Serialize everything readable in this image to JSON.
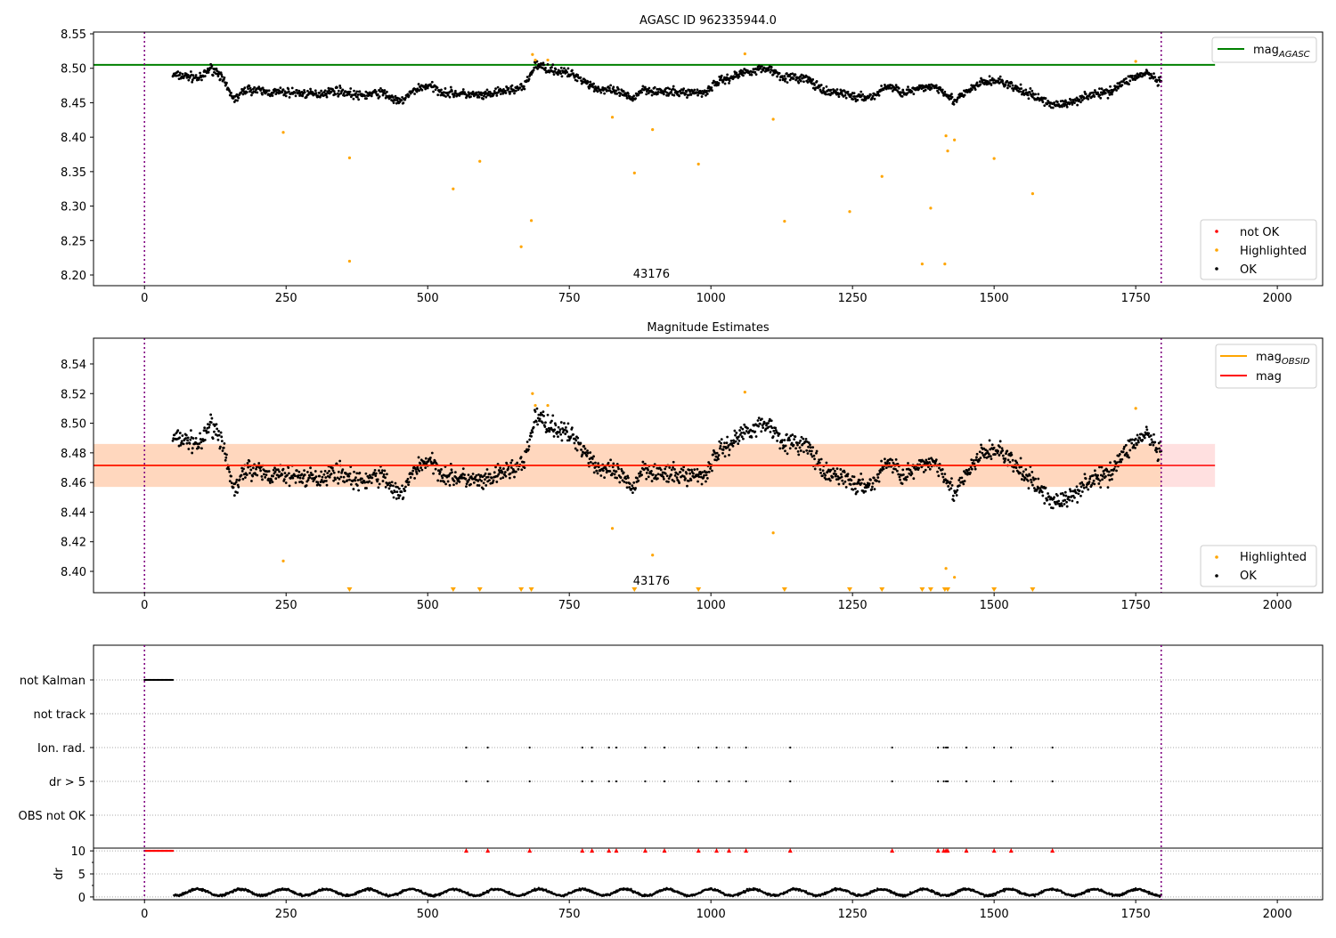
{
  "chart_data": [
    {
      "type": "scatter",
      "title": "AGASC ID 962335944.0",
      "annotation": "43176",
      "xlim": [
        -90,
        2080
      ],
      "ylim": [
        8.1845,
        8.5526
      ],
      "xticks": [
        0,
        250,
        500,
        750,
        1000,
        1250,
        1500,
        1750,
        2000
      ],
      "yticks": [
        8.2,
        8.25,
        8.3,
        8.35,
        8.4,
        8.45,
        8.5,
        8.55
      ],
      "mag_agasc": 8.505,
      "vlines": [
        0,
        1795
      ],
      "legend_lines": [
        {
          "label": "mag",
          "sub": "AGASC",
          "color": "#008000"
        }
      ],
      "legend_points": [
        {
          "label": "not OK",
          "color": "#ff0000"
        },
        {
          "label": "Highlighted",
          "color": "#ffa500"
        },
        {
          "label": "OK",
          "color": "#000000"
        }
      ],
      "ok_trend": [
        [
          50,
          8.49
        ],
        [
          80,
          8.488
        ],
        [
          100,
          8.485
        ],
        [
          115,
          8.5
        ],
        [
          130,
          8.495
        ],
        [
          150,
          8.465
        ],
        [
          160,
          8.455
        ],
        [
          180,
          8.47
        ],
        [
          220,
          8.465
        ],
        [
          260,
          8.465
        ],
        [
          300,
          8.462
        ],
        [
          340,
          8.468
        ],
        [
          380,
          8.46
        ],
        [
          420,
          8.465
        ],
        [
          450,
          8.45
        ],
        [
          480,
          8.47
        ],
        [
          500,
          8.475
        ],
        [
          530,
          8.465
        ],
        [
          570,
          8.462
        ],
        [
          600,
          8.46
        ],
        [
          640,
          8.468
        ],
        [
          670,
          8.472
        ],
        [
          690,
          8.505
        ],
        [
          720,
          8.498
        ],
        [
          760,
          8.49
        ],
        [
          800,
          8.47
        ],
        [
          840,
          8.465
        ],
        [
          860,
          8.455
        ],
        [
          880,
          8.47
        ],
        [
          920,
          8.465
        ],
        [
          960,
          8.465
        ],
        [
          990,
          8.465
        ],
        [
          1010,
          8.48
        ],
        [
          1040,
          8.488
        ],
        [
          1060,
          8.495
        ],
        [
          1100,
          8.5
        ],
        [
          1130,
          8.487
        ],
        [
          1170,
          8.485
        ],
        [
          1200,
          8.465
        ],
        [
          1230,
          8.465
        ],
        [
          1260,
          8.457
        ],
        [
          1290,
          8.46
        ],
        [
          1310,
          8.475
        ],
        [
          1340,
          8.465
        ],
        [
          1370,
          8.47
        ],
        [
          1390,
          8.475
        ],
        [
          1410,
          8.468
        ],
        [
          1430,
          8.452
        ],
        [
          1460,
          8.47
        ],
        [
          1480,
          8.48
        ],
        [
          1510,
          8.482
        ],
        [
          1540,
          8.47
        ],
        [
          1570,
          8.46
        ],
        [
          1600,
          8.448
        ],
        [
          1630,
          8.448
        ],
        [
          1660,
          8.46
        ],
        [
          1700,
          8.465
        ],
        [
          1740,
          8.485
        ],
        [
          1770,
          8.493
        ],
        [
          1790,
          8.48
        ]
      ],
      "ok_scatter": 0.008,
      "highlighted": [
        [
          245,
          8.407
        ],
        [
          362,
          8.37
        ],
        [
          362,
          8.22
        ],
        [
          545,
          8.325
        ],
        [
          592,
          8.365
        ],
        [
          665,
          8.241
        ],
        [
          683,
          8.279
        ],
        [
          685,
          8.52
        ],
        [
          690,
          8.512
        ],
        [
          712,
          8.512
        ],
        [
          826,
          8.429
        ],
        [
          865,
          8.348
        ],
        [
          897,
          8.411
        ],
        [
          978,
          8.361
        ],
        [
          1060,
          8.521
        ],
        [
          1110,
          8.426
        ],
        [
          1130,
          8.278
        ],
        [
          1245,
          8.292
        ],
        [
          1302,
          8.343
        ],
        [
          1373,
          8.216
        ],
        [
          1388,
          8.297
        ],
        [
          1413,
          8.216
        ],
        [
          1415,
          8.402
        ],
        [
          1418,
          8.38
        ],
        [
          1430,
          8.396
        ],
        [
          1500,
          8.369
        ],
        [
          1568,
          8.318
        ],
        [
          1750,
          8.51
        ]
      ]
    },
    {
      "type": "scatter",
      "title": "Magnitude Estimates",
      "annotation": "43176",
      "xlim": [
        -90,
        2080
      ],
      "ylim": [
        8.3856,
        8.5574
      ],
      "xticks": [
        0,
        250,
        500,
        750,
        1000,
        1250,
        1500,
        1750,
        2000
      ],
      "yticks": [
        8.4,
        8.42,
        8.44,
        8.46,
        8.48,
        8.5,
        8.52,
        8.54
      ],
      "mag_obsid": 8.4715,
      "mag": 8.4715,
      "band": [
        8.457,
        8.486
      ],
      "vlines": [
        0,
        1795
      ],
      "legend_lines": [
        {
          "label": "mag",
          "sub": "OBSID",
          "color": "#ffa500"
        },
        {
          "label": "mag",
          "sub": "",
          "color": "#ff0000"
        }
      ],
      "legend_points": [
        {
          "label": "Highlighted",
          "color": "#ffa500"
        },
        {
          "label": "OK",
          "color": "#000000"
        }
      ],
      "out_of_range_x": [
        362,
        545,
        592,
        665,
        683,
        865,
        978,
        1130,
        1245,
        1302,
        1373,
        1388,
        1413,
        1418,
        1500,
        1568
      ]
    },
    {
      "type": "scatter",
      "flag_rows": [
        "not Kalman",
        "not track",
        "Ion. rad.",
        "dr > 5",
        "OBS not OK"
      ],
      "not_kalman_range": [
        0,
        50
      ],
      "ion_rad_x": [
        568,
        606,
        680,
        773,
        790,
        820,
        833,
        884,
        918,
        978,
        1010,
        1032,
        1062,
        1140,
        1320,
        1401,
        1411,
        1415,
        1418,
        1451,
        1500,
        1530,
        1603
      ],
      "dr_ylabel": "dr",
      "dr_yticks": [
        0,
        5,
        10
      ],
      "dr_ylim": [
        -0.6,
        10.6
      ],
      "dr_typical": 1.0
    },
    {
      "xticks": [
        0,
        250,
        500,
        750,
        1000,
        1250,
        1500,
        1750,
        2000
      ]
    }
  ]
}
